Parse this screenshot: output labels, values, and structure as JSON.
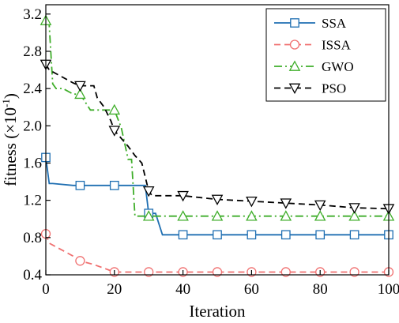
{
  "chart_data": {
    "type": "line",
    "xlabel": "Iteration",
    "ylabel_main": "fitness (×10",
    "ylabel_exp": "-1",
    "ylabel_close": ")",
    "xlim": [
      0,
      100
    ],
    "ylim": [
      0.4,
      3.3
    ],
    "xticks": [
      0,
      20,
      40,
      60,
      80,
      100
    ],
    "xtick_labels": [
      "0",
      "20",
      "40",
      "60",
      "80",
      "100"
    ],
    "yticks": [
      0.4,
      0.8,
      1.2,
      1.6,
      2.0,
      2.4,
      2.8,
      3.2
    ],
    "ytick_labels": [
      "0.4",
      "0.8",
      "1.2",
      "1.6",
      "2.0",
      "2.4",
      "2.8",
      "3.2"
    ],
    "legend_position": "top-right",
    "series": [
      {
        "name": "SSA",
        "color": "#1f6fb2",
        "dash": "solid",
        "marker": "square",
        "x": [
          0,
          1,
          2,
          8,
          10,
          20,
          25,
          29,
          30,
          32,
          34,
          40,
          50,
          60,
          70,
          80,
          90,
          100
        ],
        "y": [
          1.66,
          1.38,
          1.38,
          1.36,
          1.36,
          1.36,
          1.36,
          1.36,
          1.06,
          1.06,
          0.83,
          0.83,
          0.83,
          0.83,
          0.83,
          0.83,
          0.83,
          0.83
        ],
        "markers_x": [
          0,
          10,
          20,
          30,
          40,
          50,
          60,
          70,
          80,
          90,
          100
        ],
        "markers_y": [
          1.66,
          1.36,
          1.36,
          1.06,
          0.83,
          0.83,
          0.83,
          0.83,
          0.83,
          0.83,
          0.83
        ]
      },
      {
        "name": "ISSA",
        "color": "#f07070",
        "dash": "dash",
        "marker": "circle",
        "x": [
          0,
          1,
          3,
          5,
          8,
          10,
          14,
          17,
          20,
          25,
          30,
          40,
          50,
          60,
          70,
          80,
          90,
          100
        ],
        "y": [
          0.84,
          0.74,
          0.7,
          0.66,
          0.6,
          0.55,
          0.51,
          0.47,
          0.43,
          0.43,
          0.43,
          0.43,
          0.43,
          0.43,
          0.43,
          0.43,
          0.43,
          0.43
        ],
        "markers_x": [
          0,
          10,
          20,
          30,
          40,
          50,
          60,
          70,
          80,
          90,
          100
        ],
        "markers_y": [
          0.84,
          0.55,
          0.43,
          0.43,
          0.43,
          0.43,
          0.43,
          0.43,
          0.43,
          0.43,
          0.43
        ]
      },
      {
        "name": "GWO",
        "color": "#3fae2a",
        "dash": "dashdot",
        "marker": "triangle",
        "x": [
          0,
          1,
          2,
          3,
          4,
          5,
          8,
          10,
          13,
          15,
          18,
          20,
          22,
          24,
          25,
          26,
          30,
          40,
          50,
          60,
          70,
          80,
          90,
          100
        ],
        "y": [
          3.13,
          3.08,
          2.45,
          2.4,
          2.4,
          2.4,
          2.34,
          2.34,
          2.17,
          2.17,
          2.17,
          2.17,
          1.98,
          1.64,
          1.64,
          1.03,
          1.03,
          1.03,
          1.03,
          1.03,
          1.03,
          1.03,
          1.03,
          1.03
        ],
        "markers_x": [
          0,
          10,
          20,
          30,
          40,
          50,
          60,
          70,
          80,
          90,
          100
        ],
        "markers_y": [
          3.13,
          2.34,
          2.17,
          1.03,
          1.03,
          1.03,
          1.03,
          1.03,
          1.03,
          1.03,
          1.03
        ]
      },
      {
        "name": "PSO",
        "color": "#000000",
        "dash": "dash",
        "marker": "triangle-down",
        "x": [
          0,
          1,
          5,
          8,
          10,
          14,
          15,
          17,
          19,
          20,
          24,
          26,
          28,
          30,
          31,
          35,
          40,
          50,
          60,
          70,
          80,
          90,
          100
        ],
        "y": [
          2.66,
          2.6,
          2.52,
          2.46,
          2.43,
          2.43,
          2.3,
          2.2,
          2.05,
          1.95,
          1.78,
          1.68,
          1.6,
          1.3,
          1.25,
          1.25,
          1.25,
          1.21,
          1.19,
          1.17,
          1.15,
          1.12,
          1.11
        ],
        "markers_x": [
          0,
          10,
          20,
          30,
          40,
          50,
          60,
          70,
          80,
          90,
          100
        ],
        "markers_y": [
          2.66,
          2.43,
          1.95,
          1.3,
          1.25,
          1.21,
          1.19,
          1.17,
          1.15,
          1.12,
          1.11
        ]
      }
    ]
  }
}
